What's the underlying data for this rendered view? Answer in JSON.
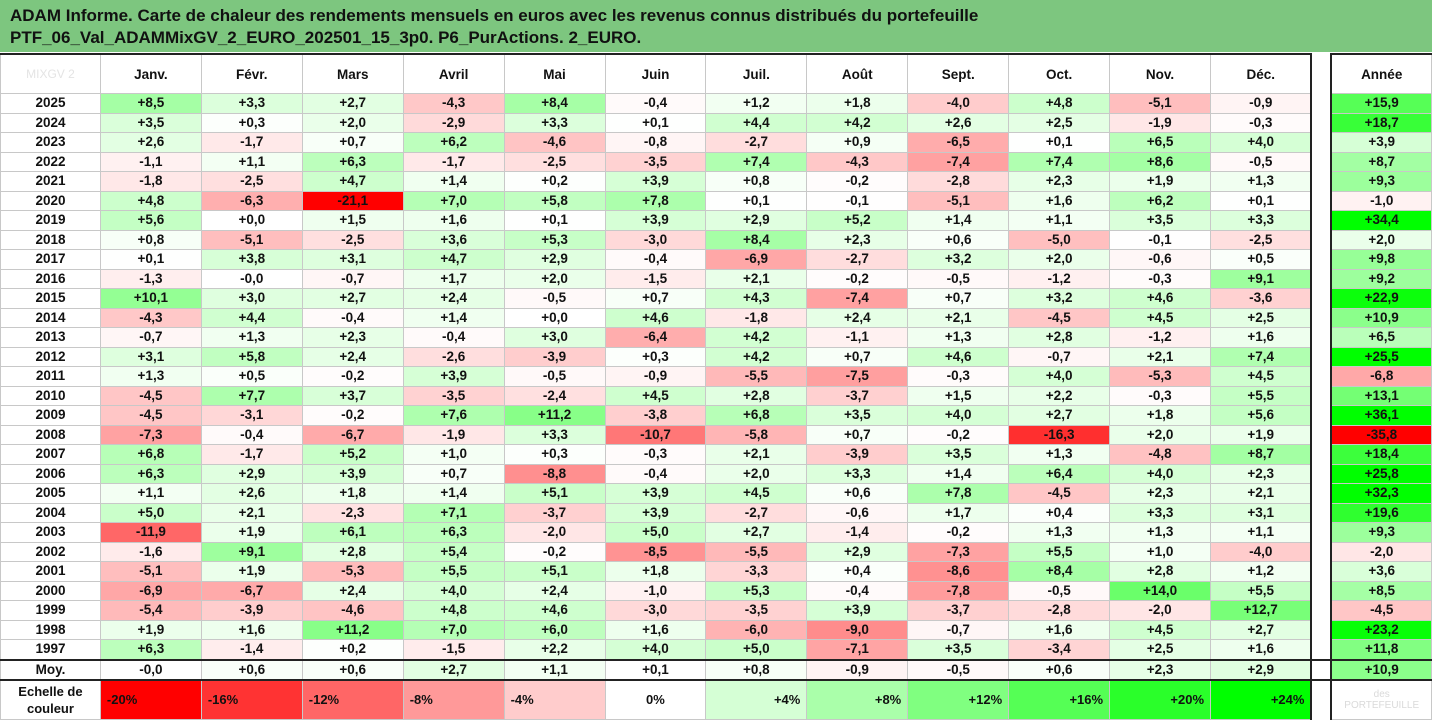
{
  "title": {
    "line1": "ADAM Informe. Carte de chaleur des rendements mensuels en euros avec les revenus connus distribués du portefeuille",
    "line2": "PTF_06_Val_ADAMMixGV_2_EURO_202501_15_3p0. P6_PurActions. 2_EURO."
  },
  "corner_label": "MIXGV 2",
  "watermark": "des\nPORTEFEUILLE",
  "colors": {
    "title_bg": "#7dc67f",
    "negative": "#ff0000",
    "positive": "#00ff00",
    "neutral": "#ffffff"
  },
  "chart_data": {
    "type": "heatmap",
    "columns": [
      "Janv.",
      "Févr.",
      "Mars",
      "Avril",
      "Mai",
      "Juin",
      "Juil.",
      "Août",
      "Sept.",
      "Oct.",
      "Nov.",
      "Déc."
    ],
    "year_column": "Année",
    "color_scale_range": [
      -20,
      24
    ],
    "rows": [
      {
        "year": "2025",
        "months": [
          "+8,5",
          "+3,3",
          "+2,7",
          "-4,3",
          "+8,4",
          "-0,4",
          "+1,2",
          "+1,8",
          "-4,0",
          "+4,8",
          "-5,1",
          "-0,9"
        ],
        "annual": "+15,9"
      },
      {
        "year": "2024",
        "months": [
          "+3,5",
          "+0,3",
          "+2,0",
          "-2,9",
          "+3,3",
          "+0,1",
          "+4,4",
          "+4,2",
          "+2,6",
          "+2,5",
          "-1,9",
          "-0,3"
        ],
        "annual": "+18,7"
      },
      {
        "year": "2023",
        "months": [
          "+2,6",
          "-1,7",
          "+0,7",
          "+6,2",
          "-4,6",
          "-0,8",
          "-2,7",
          "+0,9",
          "-6,5",
          "+0,1",
          "+6,5",
          "+4,0"
        ],
        "annual": "+3,9"
      },
      {
        "year": "2022",
        "months": [
          "-1,1",
          "+1,1",
          "+6,3",
          "-1,7",
          "-2,5",
          "-3,5",
          "+7,4",
          "-4,3",
          "-7,4",
          "+7,4",
          "+8,6",
          "-0,5"
        ],
        "annual": "+8,7"
      },
      {
        "year": "2021",
        "months": [
          "-1,8",
          "-2,5",
          "+4,7",
          "+1,4",
          "+0,2",
          "+3,9",
          "+0,8",
          "-0,2",
          "-2,8",
          "+2,3",
          "+1,9",
          "+1,3"
        ],
        "annual": "+9,3"
      },
      {
        "year": "2020",
        "months": [
          "+4,8",
          "-6,3",
          "-21,1",
          "+7,0",
          "+5,8",
          "+7,8",
          "+0,1",
          "-0,1",
          "-5,1",
          "+1,6",
          "+6,2",
          "+0,1"
        ],
        "annual": "-1,0"
      },
      {
        "year": "2019",
        "months": [
          "+5,6",
          "+0,0",
          "+1,5",
          "+1,6",
          "+0,1",
          "+3,9",
          "+2,9",
          "+5,2",
          "+1,4",
          "+1,1",
          "+3,5",
          "+3,3"
        ],
        "annual": "+34,4"
      },
      {
        "year": "2018",
        "months": [
          "+0,8",
          "-5,1",
          "-2,5",
          "+3,6",
          "+5,3",
          "-3,0",
          "+8,4",
          "+2,3",
          "+0,6",
          "-5,0",
          "-0,1",
          "-2,5"
        ],
        "annual": "+2,0"
      },
      {
        "year": "2017",
        "months": [
          "+0,1",
          "+3,8",
          "+3,1",
          "+4,7",
          "+2,9",
          "-0,4",
          "-6,9",
          "-2,7",
          "+3,2",
          "+2,0",
          "-0,6",
          "+0,5"
        ],
        "annual": "+9,8"
      },
      {
        "year": "2016",
        "months": [
          "-1,3",
          "-0,0",
          "-0,7",
          "+1,7",
          "+2,0",
          "-1,5",
          "+2,1",
          "-0,2",
          "-0,5",
          "-1,2",
          "-0,3",
          "+9,1"
        ],
        "annual": "+9,2"
      },
      {
        "year": "2015",
        "months": [
          "+10,1",
          "+3,0",
          "+2,7",
          "+2,4",
          "-0,5",
          "+0,7",
          "+4,3",
          "-7,4",
          "+0,7",
          "+3,2",
          "+4,6",
          "-3,6"
        ],
        "annual": "+22,9"
      },
      {
        "year": "2014",
        "months": [
          "-4,3",
          "+4,4",
          "-0,4",
          "+1,4",
          "+0,0",
          "+4,6",
          "-1,8",
          "+2,4",
          "+2,1",
          "-4,5",
          "+4,5",
          "+2,5"
        ],
        "annual": "+10,9"
      },
      {
        "year": "2013",
        "months": [
          "-0,7",
          "+1,3",
          "+2,3",
          "-0,4",
          "+3,0",
          "-6,4",
          "+4,2",
          "-1,1",
          "+1,3",
          "+2,8",
          "-1,2",
          "+1,6"
        ],
        "annual": "+6,5"
      },
      {
        "year": "2012",
        "months": [
          "+3,1",
          "+5,8",
          "+2,4",
          "-2,6",
          "-3,9",
          "+0,3",
          "+4,2",
          "+0,7",
          "+4,6",
          "-0,7",
          "+2,1",
          "+7,4"
        ],
        "annual": "+25,5"
      },
      {
        "year": "2011",
        "months": [
          "+1,3",
          "+0,5",
          "-0,2",
          "+3,9",
          "-0,5",
          "-0,9",
          "-5,5",
          "-7,5",
          "-0,3",
          "+4,0",
          "-5,3",
          "+4,5"
        ],
        "annual": "-6,8"
      },
      {
        "year": "2010",
        "months": [
          "-4,5",
          "+7,7",
          "+3,7",
          "-3,5",
          "-2,4",
          "+4,5",
          "+2,8",
          "-3,7",
          "+1,5",
          "+2,2",
          "-0,3",
          "+5,5"
        ],
        "annual": "+13,1"
      },
      {
        "year": "2009",
        "months": [
          "-4,5",
          "-3,1",
          "-0,2",
          "+7,6",
          "+11,2",
          "-3,8",
          "+6,8",
          "+3,5",
          "+4,0",
          "+2,7",
          "+1,8",
          "+5,6"
        ],
        "annual": "+36,1"
      },
      {
        "year": "2008",
        "months": [
          "-7,3",
          "-0,4",
          "-6,7",
          "-1,9",
          "+3,3",
          "-10,7",
          "-5,8",
          "+0,7",
          "-0,2",
          "-16,3",
          "+2,0",
          "+1,9"
        ],
        "annual": "-35,8"
      },
      {
        "year": "2007",
        "months": [
          "+6,8",
          "-1,7",
          "+5,2",
          "+1,0",
          "+0,3",
          "-0,3",
          "+2,1",
          "-3,9",
          "+3,5",
          "+1,3",
          "-4,8",
          "+8,7"
        ],
        "annual": "+18,4"
      },
      {
        "year": "2006",
        "months": [
          "+6,3",
          "+2,9",
          "+3,9",
          "+0,7",
          "-8,8",
          "-0,4",
          "+2,0",
          "+3,3",
          "+1,4",
          "+6,4",
          "+4,0",
          "+2,3"
        ],
        "annual": "+25,8"
      },
      {
        "year": "2005",
        "months": [
          "+1,1",
          "+2,6",
          "+1,8",
          "+1,4",
          "+5,1",
          "+3,9",
          "+4,5",
          "+0,6",
          "+7,8",
          "-4,5",
          "+2,3",
          "+2,1"
        ],
        "annual": "+32,3"
      },
      {
        "year": "2004",
        "months": [
          "+5,0",
          "+2,1",
          "-2,3",
          "+7,1",
          "-3,7",
          "+3,9",
          "-2,7",
          "-0,6",
          "+1,7",
          "+0,4",
          "+3,3",
          "+3,1"
        ],
        "annual": "+19,6"
      },
      {
        "year": "2003",
        "months": [
          "-11,9",
          "+1,9",
          "+6,1",
          "+6,3",
          "-2,0",
          "+5,0",
          "+2,7",
          "-1,4",
          "-0,2",
          "+1,3",
          "+1,3",
          "+1,1"
        ],
        "annual": "+9,3"
      },
      {
        "year": "2002",
        "months": [
          "-1,6",
          "+9,1",
          "+2,8",
          "+5,4",
          "-0,2",
          "-8,5",
          "-5,5",
          "+2,9",
          "-7,3",
          "+5,5",
          "+1,0",
          "-4,0"
        ],
        "annual": "-2,0"
      },
      {
        "year": "2001",
        "months": [
          "-5,1",
          "+1,9",
          "-5,3",
          "+5,5",
          "+5,1",
          "+1,8",
          "-3,3",
          "+0,4",
          "-8,6",
          "+8,4",
          "+2,8",
          "+1,2"
        ],
        "annual": "+3,6"
      },
      {
        "year": "2000",
        "months": [
          "-6,9",
          "-6,7",
          "+2,4",
          "+4,0",
          "+2,4",
          "-1,0",
          "+5,3",
          "-0,4",
          "-7,8",
          "-0,5",
          "+14,0",
          "+5,5"
        ],
        "annual": "+8,5"
      },
      {
        "year": "1999",
        "months": [
          "-5,4",
          "-3,9",
          "-4,6",
          "+4,8",
          "+4,6",
          "-3,0",
          "-3,5",
          "+3,9",
          "-3,7",
          "-2,8",
          "-2,0",
          "+12,7"
        ],
        "annual": "-4,5"
      },
      {
        "year": "1998",
        "months": [
          "+1,9",
          "+1,6",
          "+11,2",
          "+7,0",
          "+6,0",
          "+1,6",
          "-6,0",
          "-9,0",
          "-0,7",
          "+1,6",
          "+4,5",
          "+2,7"
        ],
        "annual": "+23,2"
      },
      {
        "year": "1997",
        "months": [
          "+6,3",
          "-1,4",
          "+0,2",
          "-1,5",
          "+2,2",
          "+4,0",
          "+5,0",
          "-7,1",
          "+3,5",
          "-3,4",
          "+2,5",
          "+1,6"
        ],
        "annual": "+11,8"
      }
    ],
    "average": {
      "label": "Moy.",
      "months": [
        "-0,0",
        "+0,6",
        "+0,6",
        "+2,7",
        "+1,1",
        "+0,1",
        "+0,8",
        "-0,9",
        "-0,5",
        "+0,6",
        "+2,3",
        "+2,9"
      ],
      "annual": "+10,9"
    },
    "scale": {
      "label": "Echelle de couleur",
      "steps": [
        "-20%",
        "-16%",
        "-12%",
        "-8%",
        "-4%",
        "0%",
        "+4%",
        "+8%",
        "+12%",
        "+16%",
        "+20%",
        "+24%"
      ],
      "values": [
        -20,
        -16,
        -12,
        -8,
        -4,
        0,
        4,
        8,
        12,
        16,
        20,
        24
      ]
    }
  }
}
